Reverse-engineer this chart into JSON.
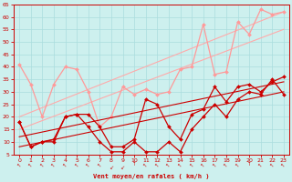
{
  "xlabel": "Vent moyen/en rafales ( km/h )",
  "xlim": [
    -0.5,
    23.5
  ],
  "ylim": [
    5,
    65
  ],
  "yticks": [
    5,
    10,
    15,
    20,
    25,
    30,
    35,
    40,
    45,
    50,
    55,
    60,
    65
  ],
  "xticks": [
    0,
    1,
    2,
    3,
    4,
    5,
    6,
    7,
    8,
    9,
    10,
    11,
    12,
    13,
    14,
    15,
    16,
    17,
    18,
    19,
    20,
    21,
    22,
    23
  ],
  "bg_color": "#cdf0ee",
  "grid_color": "#aadddd",
  "series_light": [
    {
      "x": [
        0,
        1,
        2,
        3,
        4,
        5,
        6,
        7,
        8,
        9,
        10,
        11,
        12,
        13,
        14,
        15,
        16,
        17,
        18,
        19,
        20,
        21,
        22,
        23
      ],
      "y": [
        41,
        33,
        20,
        33,
        40,
        39,
        30,
        16,
        20,
        32,
        29,
        31,
        29,
        30,
        39,
        40,
        57,
        37,
        38,
        58,
        53,
        63,
        61,
        62
      ],
      "color": "#ff9999",
      "lw": 0.9,
      "marker": "D",
      "ms": 2.0
    },
    {
      "x": [
        0,
        23
      ],
      "y": [
        15,
        55
      ],
      "color": "#ffaaaa",
      "lw": 0.8,
      "marker": null,
      "ms": 0
    },
    {
      "x": [
        0,
        23
      ],
      "y": [
        20,
        62
      ],
      "color": "#ffaaaa",
      "lw": 0.8,
      "marker": null,
      "ms": 0
    }
  ],
  "series_dark": [
    {
      "x": [
        0,
        1,
        2,
        3,
        4,
        5,
        6,
        7,
        8,
        9,
        10,
        11,
        12,
        13,
        14,
        15,
        16,
        17,
        18,
        19,
        20,
        21,
        22,
        23
      ],
      "y": [
        18,
        8,
        10,
        10,
        20,
        21,
        16,
        10,
        6,
        6,
        10,
        6,
        6,
        10,
        6,
        15,
        20,
        25,
        20,
        27,
        30,
        29,
        35,
        29
      ],
      "color": "#cc0000",
      "lw": 0.9,
      "marker": "D",
      "ms": 2.0
    },
    {
      "x": [
        0,
        1,
        2,
        3,
        4,
        5,
        6,
        7,
        8,
        9,
        10,
        11,
        12,
        13,
        14,
        15,
        16,
        17,
        18,
        19,
        20,
        21,
        22,
        23
      ],
      "y": [
        18,
        8,
        10,
        11,
        20,
        21,
        21,
        16,
        8,
        8,
        11,
        27,
        25,
        16,
        11,
        21,
        23,
        32,
        26,
        32,
        33,
        30,
        34,
        36
      ],
      "color": "#cc0000",
      "lw": 0.9,
      "marker": "D",
      "ms": 2.0
    },
    {
      "x": [
        0,
        23
      ],
      "y": [
        8,
        30
      ],
      "color": "#cc0000",
      "lw": 0.8,
      "marker": null,
      "ms": 0
    },
    {
      "x": [
        0,
        23
      ],
      "y": [
        12,
        34
      ],
      "color": "#cc0000",
      "lw": 0.8,
      "marker": null,
      "ms": 0
    }
  ],
  "arrow_angles": [
    45,
    45,
    45,
    45,
    45,
    45,
    45,
    45,
    315,
    315,
    90,
    45,
    45,
    45,
    45,
    45,
    45,
    45,
    45,
    45,
    90,
    45,
    45,
    45
  ],
  "arrow_color": "#cc0000"
}
